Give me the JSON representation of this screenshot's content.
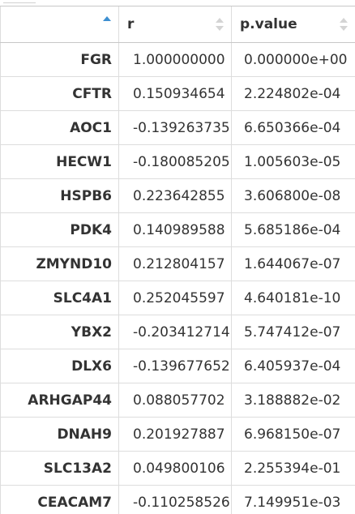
{
  "table": {
    "columns": [
      {
        "label": "",
        "sort": "ascending"
      },
      {
        "label": "r",
        "sort": "none"
      },
      {
        "label": "p.value",
        "sort": "none"
      }
    ],
    "rows": [
      {
        "gene": "FGR",
        "r": "1.000000000",
        "p": "0.000000e+00"
      },
      {
        "gene": "CFTR",
        "r": "0.150934654",
        "p": "2.224802e-04"
      },
      {
        "gene": "AOC1",
        "r": "-0.139263735",
        "p": "6.650366e-04"
      },
      {
        "gene": "HECW1",
        "r": "-0.180085205",
        "p": "1.005603e-05"
      },
      {
        "gene": "HSPB6",
        "r": "0.223642855",
        "p": "3.606800e-08"
      },
      {
        "gene": "PDK4",
        "r": "0.140989588",
        "p": "5.685186e-04"
      },
      {
        "gene": "ZMYND10",
        "r": "0.212804157",
        "p": "1.644067e-07"
      },
      {
        "gene": "SLC4A1",
        "r": "0.252045597",
        "p": "4.640181e-10"
      },
      {
        "gene": "YBX2",
        "r": "-0.203412714",
        "p": "5.747412e-07"
      },
      {
        "gene": "DLX6",
        "r": "-0.139677652",
        "p": "6.405937e-04"
      },
      {
        "gene": "ARHGAP44",
        "r": "0.088057702",
        "p": "3.188882e-02"
      },
      {
        "gene": "DNAH9",
        "r": "0.201927887",
        "p": "6.968150e-07"
      },
      {
        "gene": "SLC13A2",
        "r": "0.049800106",
        "p": "2.255394e-01"
      },
      {
        "gene": "CEACAM7",
        "r": "-0.110258526",
        "p": "7.149951e-03"
      }
    ]
  },
  "colors": {
    "sort_active": "#3d8fd1",
    "sort_inactive": "#d4d4d4",
    "border": "#dddddd",
    "text": "#333333"
  }
}
